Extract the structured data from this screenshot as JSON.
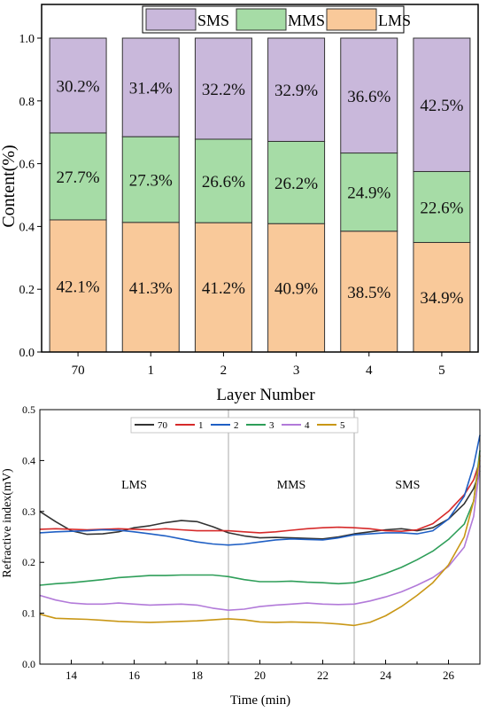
{
  "chart_data": [
    {
      "type": "bar",
      "stacked": true,
      "xlabel": "Layer Number",
      "ylabel": "Content(%)",
      "categories": [
        "70",
        "1",
        "2",
        "3",
        "4",
        "5"
      ],
      "ylim": [
        0,
        1.0
      ],
      "yticks": [
        "0.0",
        "0.2",
        "0.4",
        "0.6",
        "0.8",
        "1.0"
      ],
      "series": [
        {
          "name": "LMS",
          "color": "#f9c99a",
          "values": [
            0.421,
            0.413,
            0.412,
            0.409,
            0.385,
            0.349
          ],
          "labels": [
            "42.1%",
            "41.3%",
            "41.2%",
            "40.9%",
            "38.5%",
            "34.9%"
          ]
        },
        {
          "name": "MMS",
          "color": "#a6dca6",
          "values": [
            0.277,
            0.273,
            0.266,
            0.262,
            0.249,
            0.226
          ],
          "labels": [
            "27.7%",
            "27.3%",
            "26.6%",
            "26.2%",
            "24.9%",
            "22.6%"
          ]
        },
        {
          "name": "SMS",
          "color": "#c9b8db",
          "values": [
            0.302,
            0.314,
            0.322,
            0.329,
            0.366,
            0.425
          ],
          "labels": [
            "30.2%",
            "31.4%",
            "32.2%",
            "32.9%",
            "36.6%",
            "42.5%"
          ]
        }
      ],
      "legend": {
        "position": "top",
        "order": [
          "SMS",
          "MMS",
          "LMS"
        ]
      }
    },
    {
      "type": "line",
      "xlabel": "Time (min)",
      "ylabel": "Refractive index(mV)",
      "xlim": [
        13,
        27
      ],
      "ylim": [
        0,
        0.5
      ],
      "xticks": [
        "14",
        "16",
        "18",
        "20",
        "22",
        "24",
        "26"
      ],
      "yticks": [
        "0.0",
        "0.1",
        "0.2",
        "0.3",
        "0.4",
        "0.5"
      ],
      "region_dividers": [
        19,
        23
      ],
      "region_labels": [
        {
          "text": "LMS",
          "x": 16,
          "y": 0.345
        },
        {
          "text": "MMS",
          "x": 21,
          "y": 0.345
        },
        {
          "text": "SMS",
          "x": 24.7,
          "y": 0.345
        }
      ],
      "legend": {
        "position": "top"
      },
      "series": [
        {
          "name": "70",
          "color": "#333333",
          "x": [
            13,
            13.5,
            14,
            14.5,
            15,
            15.5,
            16,
            16.5,
            17,
            17.5,
            18,
            18.5,
            19,
            19.5,
            20,
            20.5,
            21,
            21.5,
            22,
            22.5,
            23,
            23.5,
            24,
            24.5,
            25,
            25.5,
            26,
            26.5,
            26.8,
            27
          ],
          "y": [
            0.3,
            0.28,
            0.262,
            0.255,
            0.256,
            0.26,
            0.268,
            0.272,
            0.278,
            0.282,
            0.28,
            0.27,
            0.258,
            0.252,
            0.248,
            0.249,
            0.248,
            0.247,
            0.246,
            0.25,
            0.256,
            0.26,
            0.264,
            0.266,
            0.262,
            0.268,
            0.285,
            0.315,
            0.345,
            0.38
          ]
        },
        {
          "name": "1",
          "color": "#d62a2a",
          "x": [
            13,
            13.5,
            14,
            14.5,
            15,
            15.5,
            16,
            16.5,
            17,
            17.5,
            18,
            18.5,
            19,
            19.5,
            20,
            20.5,
            21,
            21.5,
            22,
            22.5,
            23,
            23.5,
            24,
            24.5,
            25,
            25.5,
            26,
            26.5,
            26.8,
            27
          ],
          "y": [
            0.265,
            0.266,
            0.265,
            0.264,
            0.265,
            0.266,
            0.265,
            0.264,
            0.266,
            0.264,
            0.262,
            0.262,
            0.262,
            0.26,
            0.258,
            0.26,
            0.263,
            0.266,
            0.268,
            0.269,
            0.268,
            0.266,
            0.262,
            0.261,
            0.264,
            0.276,
            0.3,
            0.333,
            0.362,
            0.4
          ]
        },
        {
          "name": "2",
          "color": "#1f5fc4",
          "x": [
            13,
            13.5,
            14,
            14.5,
            15,
            15.5,
            16,
            16.5,
            17,
            17.5,
            18,
            18.5,
            19,
            19.5,
            20,
            20.5,
            21,
            21.5,
            22,
            22.5,
            23,
            23.5,
            24,
            24.5,
            25,
            25.5,
            26,
            26.5,
            26.8,
            27
          ],
          "y": [
            0.258,
            0.26,
            0.261,
            0.262,
            0.264,
            0.263,
            0.26,
            0.256,
            0.252,
            0.246,
            0.24,
            0.236,
            0.234,
            0.236,
            0.24,
            0.244,
            0.246,
            0.245,
            0.244,
            0.248,
            0.254,
            0.256,
            0.258,
            0.258,
            0.256,
            0.262,
            0.285,
            0.33,
            0.39,
            0.45
          ]
        },
        {
          "name": "3",
          "color": "#2e9e59",
          "x": [
            13,
            13.5,
            14,
            14.5,
            15,
            15.5,
            16,
            16.5,
            17,
            17.5,
            18,
            18.5,
            19,
            19.5,
            20,
            20.5,
            21,
            21.5,
            22,
            22.5,
            23,
            23.5,
            24,
            24.5,
            25,
            25.5,
            26,
            26.5,
            26.8,
            27
          ],
          "y": [
            0.155,
            0.158,
            0.16,
            0.163,
            0.166,
            0.17,
            0.172,
            0.174,
            0.174,
            0.175,
            0.175,
            0.175,
            0.172,
            0.166,
            0.162,
            0.162,
            0.163,
            0.161,
            0.16,
            0.158,
            0.16,
            0.168,
            0.178,
            0.19,
            0.205,
            0.222,
            0.245,
            0.275,
            0.32,
            0.42
          ]
        },
        {
          "name": "4",
          "color": "#b27ad9",
          "x": [
            13,
            13.5,
            14,
            14.5,
            15,
            15.5,
            16,
            16.5,
            17,
            17.5,
            18,
            18.5,
            19,
            19.5,
            20,
            20.5,
            21,
            21.5,
            22,
            22.5,
            23,
            23.5,
            24,
            24.5,
            25,
            25.5,
            26,
            26.5,
            26.8,
            27
          ],
          "y": [
            0.135,
            0.126,
            0.12,
            0.118,
            0.118,
            0.12,
            0.118,
            0.116,
            0.117,
            0.118,
            0.116,
            0.11,
            0.106,
            0.108,
            0.113,
            0.116,
            0.118,
            0.12,
            0.118,
            0.117,
            0.118,
            0.124,
            0.132,
            0.142,
            0.155,
            0.17,
            0.192,
            0.23,
            0.29,
            0.39
          ]
        },
        {
          "name": "5",
          "color": "#c99716",
          "x": [
            13,
            13.5,
            14,
            14.5,
            15,
            15.5,
            16,
            16.5,
            17,
            17.5,
            18,
            18.5,
            19,
            19.5,
            20,
            20.5,
            21,
            21.5,
            22,
            22.5,
            23,
            23.5,
            24,
            24.5,
            25,
            25.5,
            26,
            26.5,
            26.8,
            27
          ],
          "y": [
            0.098,
            0.09,
            0.089,
            0.088,
            0.086,
            0.084,
            0.083,
            0.082,
            0.083,
            0.084,
            0.085,
            0.087,
            0.089,
            0.087,
            0.083,
            0.082,
            0.083,
            0.082,
            0.081,
            0.079,
            0.076,
            0.082,
            0.095,
            0.113,
            0.135,
            0.16,
            0.195,
            0.25,
            0.32,
            0.41
          ]
        }
      ]
    }
  ]
}
